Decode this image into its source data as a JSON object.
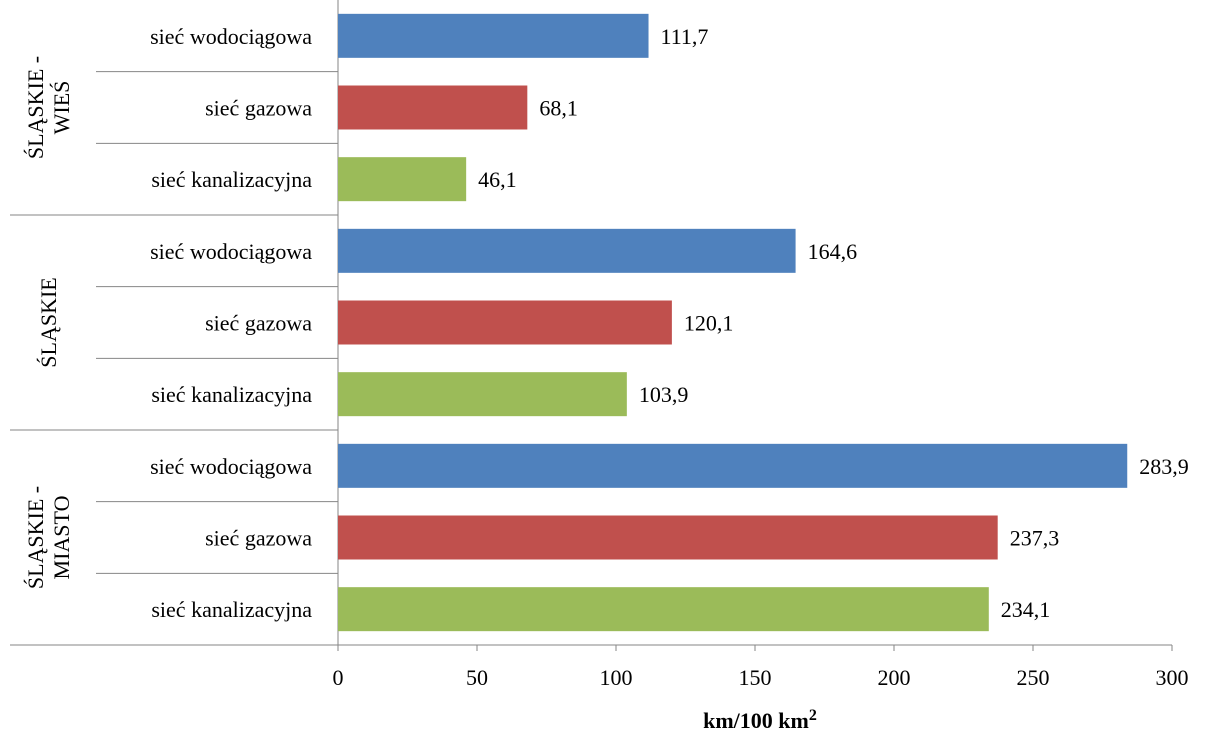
{
  "chart_data": {
    "type": "bar",
    "orientation": "horizontal",
    "xlabel": "km/100 km²",
    "xlabel_base": "km/100 km",
    "xlabel_sup": "2",
    "xlim": [
      0,
      300
    ],
    "xticks": [
      "0",
      "50",
      "100",
      "150",
      "200",
      "250",
      "300"
    ],
    "grid": false,
    "groups": [
      {
        "name_lines": [
          "ŚLĄSKIE -",
          "WIEŚ"
        ],
        "bars": [
          {
            "label": "sieć wodociągowa",
            "value": 111.7,
            "value_label": "111,7",
            "color": "#4f81bd"
          },
          {
            "label": "sieć gazowa",
            "value": 68.1,
            "value_label": "68,1",
            "color": "#c0504d"
          },
          {
            "label": "sieć kanalizacyjna",
            "value": 46.1,
            "value_label": "46,1",
            "color": "#9bbb59"
          }
        ]
      },
      {
        "name_lines": [
          "ŚLĄSKIE"
        ],
        "bars": [
          {
            "label": "sieć wodociągowa",
            "value": 164.6,
            "value_label": "164,6",
            "color": "#4f81bd"
          },
          {
            "label": "sieć gazowa",
            "value": 120.1,
            "value_label": "120,1",
            "color": "#c0504d"
          },
          {
            "label": "sieć kanalizacyjna",
            "value": 103.9,
            "value_label": "103,9",
            "color": "#9bbb59"
          }
        ]
      },
      {
        "name_lines": [
          "ŚLĄSKIE -",
          "MIASTO"
        ],
        "bars": [
          {
            "label": "sieć wodociągowa",
            "value": 283.9,
            "value_label": "283,9",
            "color": "#4f81bd"
          },
          {
            "label": "sieć gazowa",
            "value": 237.3,
            "value_label": "237,3",
            "color": "#c0504d"
          },
          {
            "label": "sieć kanalizacyjna",
            "value": 234.1,
            "value_label": "234,1",
            "color": "#9bbb59"
          }
        ]
      }
    ]
  }
}
